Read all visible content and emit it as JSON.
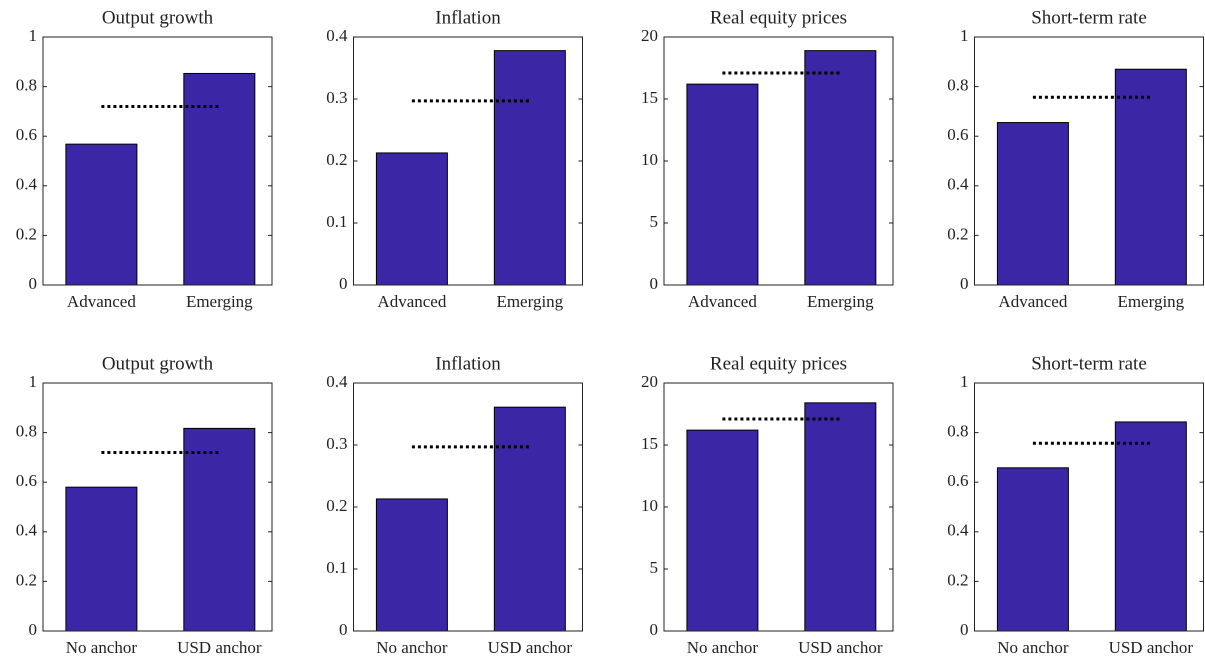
{
  "chart_data": [
    {
      "type": "bar",
      "title": "Output growth",
      "categories": [
        "Advanced",
        "Emerging"
      ],
      "values": [
        0.568,
        0.853
      ],
      "color": "#3b27a6",
      "reference_line": 0.72,
      "ylim": [
        0,
        1
      ],
      "yticks": [
        0,
        0.2,
        0.4,
        0.6,
        0.8,
        1
      ]
    },
    {
      "type": "bar",
      "title": "Inflation",
      "categories": [
        "Advanced",
        "Emerging"
      ],
      "values": [
        0.213,
        0.378
      ],
      "color": "#3b27a6",
      "reference_line": 0.297,
      "ylim": [
        0,
        0.4
      ],
      "yticks": [
        0,
        0.1,
        0.2,
        0.3,
        0.4
      ]
    },
    {
      "type": "bar",
      "title": "Real equity prices",
      "categories": [
        "Advanced",
        "Emerging"
      ],
      "values": [
        16.2,
        18.9
      ],
      "color": "#3b27a6",
      "reference_line": 17.1,
      "ylim": [
        0,
        20
      ],
      "yticks": [
        0,
        5,
        10,
        15,
        20
      ]
    },
    {
      "type": "bar",
      "title": "Short-term rate",
      "categories": [
        "Advanced",
        "Emerging"
      ],
      "values": [
        0.655,
        0.87
      ],
      "color": "#3b27a6",
      "reference_line": 0.757,
      "ylim": [
        0,
        1
      ],
      "yticks": [
        0,
        0.2,
        0.4,
        0.6,
        0.8,
        1
      ]
    },
    {
      "type": "bar",
      "title": "Output growth",
      "categories": [
        "No anchor",
        "USD anchor"
      ],
      "values": [
        0.58,
        0.817
      ],
      "color": "#3b27a6",
      "reference_line": 0.72,
      "ylim": [
        0,
        1
      ],
      "yticks": [
        0,
        0.2,
        0.4,
        0.6,
        0.8,
        1
      ]
    },
    {
      "type": "bar",
      "title": "Inflation",
      "categories": [
        "No anchor",
        "USD anchor"
      ],
      "values": [
        0.213,
        0.361
      ],
      "color": "#3b27a6",
      "reference_line": 0.297,
      "ylim": [
        0,
        0.4
      ],
      "yticks": [
        0,
        0.1,
        0.2,
        0.3,
        0.4
      ]
    },
    {
      "type": "bar",
      "title": "Real equity prices",
      "categories": [
        "No anchor",
        "USD anchor"
      ],
      "values": [
        16.2,
        18.4
      ],
      "color": "#3b27a6",
      "reference_line": 17.1,
      "ylim": [
        0,
        20
      ],
      "yticks": [
        0,
        5,
        10,
        15,
        20
      ]
    },
    {
      "type": "bar",
      "title": "Short-term rate",
      "categories": [
        "No anchor",
        "USD anchor"
      ],
      "values": [
        0.658,
        0.843
      ],
      "color": "#3b27a6",
      "reference_line": 0.757,
      "ylim": [
        0,
        1
      ],
      "yticks": [
        0,
        0.2,
        0.4,
        0.6,
        0.8,
        1
      ]
    }
  ]
}
